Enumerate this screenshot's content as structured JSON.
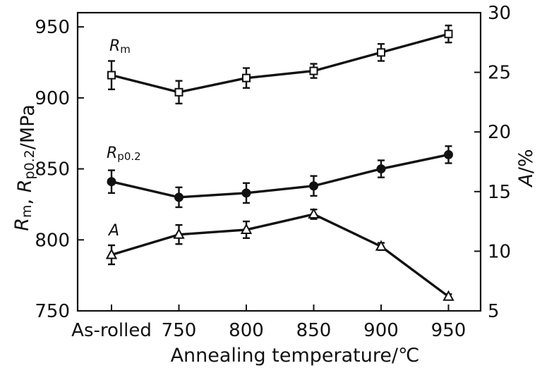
{
  "chart_data": {
    "type": "line",
    "xlabel": "Annealing temperature/℃",
    "categories": [
      "As-rolled",
      "750",
      "800",
      "850",
      "900",
      "950"
    ],
    "left_axis": {
      "label_parts": [
        {
          "text": "R",
          "italic": true
        },
        {
          "text": "m",
          "sub": true
        },
        {
          "text": ", ",
          "italic": false
        },
        {
          "text": "R",
          "italic": true
        },
        {
          "text": "p0.2",
          "sub": true
        },
        {
          "text": "/MPa",
          "italic": false
        }
      ],
      "ylim": [
        750,
        960
      ],
      "ticks": [
        750,
        800,
        850,
        900,
        950
      ]
    },
    "right_axis": {
      "label_parts": [
        {
          "text": "A",
          "italic": true
        },
        {
          "text": "/%",
          "italic": false
        }
      ],
      "ylim": [
        5,
        30
      ],
      "ticks": [
        5,
        10,
        15,
        20,
        25,
        30
      ]
    },
    "series": [
      {
        "name": "Rm",
        "label_main": "R",
        "label_sub": "m",
        "axis": "left",
        "marker": "square-open",
        "values": [
          916,
          904,
          914,
          919,
          932,
          945
        ],
        "errors": [
          10,
          8,
          7,
          5,
          6,
          6
        ]
      },
      {
        "name": "Rp0.2",
        "label_main": "R",
        "label_sub": "p0.2",
        "axis": "left",
        "marker": "circle-filled",
        "values": [
          841,
          830,
          833,
          838,
          850,
          860
        ],
        "errors": [
          8,
          7,
          7,
          7,
          6,
          6
        ]
      },
      {
        "name": "A",
        "label_main": "A",
        "label_sub": "",
        "axis": "right",
        "marker": "triangle-open",
        "values": [
          9.7,
          11.4,
          11.8,
          13.1,
          10.4,
          6.2
        ],
        "errors": [
          0.8,
          0.8,
          0.7,
          0.4,
          0.3,
          0.2
        ]
      }
    ],
    "grid": false,
    "legend": "inline-labels"
  }
}
